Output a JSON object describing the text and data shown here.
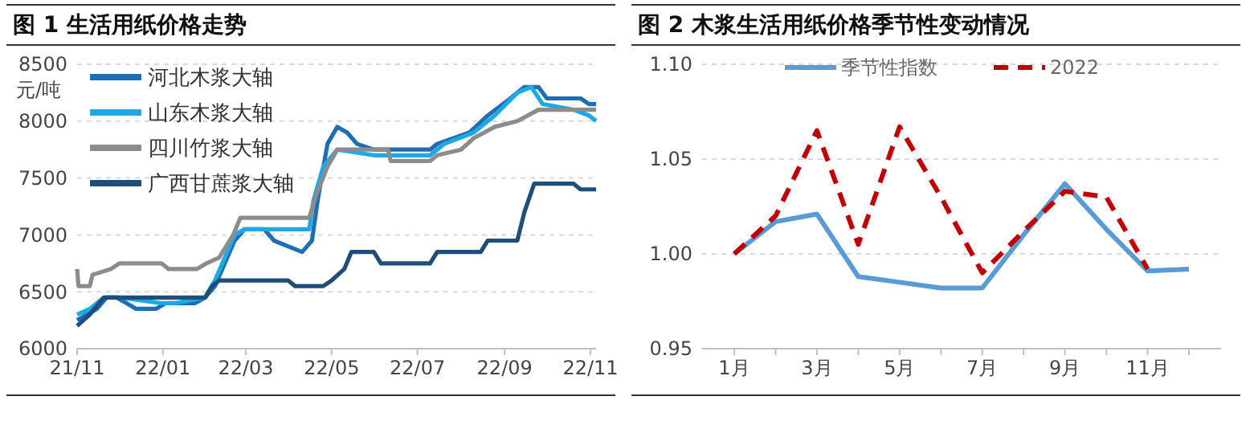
{
  "chart_data": [
    {
      "type": "line",
      "title": "图 1  生活用纸价格走势",
      "ylabel": "元/吨",
      "xlim": [
        "2021-11-01",
        "2022-11-05"
      ],
      "xticks": [
        {
          "value": "2021-11-01",
          "label": "21/11"
        },
        {
          "value": "2022-01-01",
          "label": "22/01"
        },
        {
          "value": "2022-03-01",
          "label": "22/03"
        },
        {
          "value": "2022-05-01",
          "label": "22/05"
        },
        {
          "value": "2022-07-01",
          "label": "22/07"
        },
        {
          "value": "2022-09-01",
          "label": "22/09"
        },
        {
          "value": "2022-11-01",
          "label": "22/11"
        }
      ],
      "ylim": [
        6000,
        8500
      ],
      "yticks": [
        6000,
        6500,
        7000,
        7500,
        8000,
        8500
      ],
      "grid": "y",
      "legend": "top left",
      "series": [
        {
          "name": "河北木浆大轴",
          "color": "#1f6db3",
          "x": [
            "2021-11-01",
            "2021-11-08",
            "2021-11-15",
            "2021-11-22",
            "2021-11-29",
            "2021-12-06",
            "2021-12-13",
            "2021-12-27",
            "2022-01-03",
            "2022-01-24",
            "2022-01-31",
            "2022-02-07",
            "2022-02-14",
            "2022-02-21",
            "2022-02-28",
            "2022-03-14",
            "2022-03-21",
            "2022-03-31",
            "2022-04-10",
            "2022-04-17",
            "2022-04-21",
            "2022-04-28",
            "2022-05-05",
            "2022-05-12",
            "2022-05-19",
            "2022-05-31",
            "2022-07-10",
            "2022-07-15",
            "2022-08-07",
            "2022-08-20",
            "2022-09-05",
            "2022-09-15",
            "2022-09-25",
            "2022-10-01",
            "2022-10-25",
            "2022-10-31",
            "2022-11-05"
          ],
          "values": [
            6250,
            6300,
            6350,
            6450,
            6450,
            6400,
            6350,
            6350,
            6400,
            6400,
            6450,
            6550,
            6750,
            6950,
            7050,
            7050,
            6950,
            6900,
            6850,
            6950,
            7300,
            7800,
            7950,
            7900,
            7800,
            7750,
            7750,
            7800,
            7900,
            8050,
            8200,
            8300,
            8300,
            8200,
            8200,
            8150,
            8150
          ]
        },
        {
          "name": "山东木浆大轴",
          "color": "#1ea8e6",
          "x": [
            "2021-11-01",
            "2021-11-10",
            "2021-11-20",
            "2021-12-01",
            "2021-12-31",
            "2022-01-10",
            "2022-01-31",
            "2022-02-07",
            "2022-02-14",
            "2022-02-21",
            "2022-02-28",
            "2022-04-15",
            "2022-04-18",
            "2022-04-25",
            "2022-05-05",
            "2022-05-31",
            "2022-07-10",
            "2022-07-20",
            "2022-08-10",
            "2022-08-25",
            "2022-09-10",
            "2022-09-20",
            "2022-09-28",
            "2022-10-20",
            "2022-10-31",
            "2022-11-05"
          ],
          "values": [
            6300,
            6350,
            6450,
            6450,
            6400,
            6400,
            6450,
            6600,
            6800,
            7000,
            7050,
            7050,
            7300,
            7600,
            7750,
            7700,
            7700,
            7800,
            7900,
            8050,
            8250,
            8300,
            8150,
            8100,
            8050,
            8000
          ]
        },
        {
          "name": "四川竹浆大轴",
          "color": "#8c8c8c",
          "x": [
            "2021-11-01",
            "2021-11-02",
            "2021-11-10",
            "2021-11-12",
            "2021-11-25",
            "2021-12-01",
            "2021-12-31",
            "2022-01-05",
            "2022-01-25",
            "2022-02-01",
            "2022-02-10",
            "2022-02-20",
            "2022-02-25",
            "2022-04-15",
            "2022-04-20",
            "2022-04-28",
            "2022-05-05",
            "2022-06-10",
            "2022-06-12",
            "2022-07-10",
            "2022-07-15",
            "2022-08-01",
            "2022-08-10",
            "2022-08-25",
            "2022-09-10",
            "2022-09-25",
            "2022-11-05"
          ],
          "values": [
            6700,
            6550,
            6550,
            6650,
            6700,
            6750,
            6750,
            6700,
            6700,
            6750,
            6800,
            7000,
            7150,
            7150,
            7350,
            7600,
            7750,
            7750,
            7650,
            7650,
            7700,
            7750,
            7850,
            7950,
            8000,
            8100,
            8100
          ]
        },
        {
          "name": "广西甘蔗浆大轴",
          "color": "#1f4e79",
          "x": [
            "2021-11-01",
            "2021-11-10",
            "2021-11-20",
            "2021-12-01",
            "2022-01-31",
            "2022-02-05",
            "2022-02-10",
            "2022-03-31",
            "2022-04-05",
            "2022-04-25",
            "2022-05-01",
            "2022-05-10",
            "2022-05-15",
            "2022-05-31",
            "2022-06-05",
            "2022-07-10",
            "2022-07-15",
            "2022-08-15",
            "2022-08-20",
            "2022-09-10",
            "2022-09-15",
            "2022-09-22",
            "2022-10-20",
            "2022-10-25",
            "2022-11-05"
          ],
          "values": [
            6200,
            6300,
            6450,
            6450,
            6450,
            6550,
            6600,
            6600,
            6550,
            6550,
            6600,
            6700,
            6850,
            6850,
            6750,
            6750,
            6850,
            6850,
            6950,
            6950,
            7200,
            7450,
            7450,
            7400,
            7400
          ]
        }
      ]
    },
    {
      "type": "line",
      "title": "图 2  木浆生活用纸价格季节性变动情况",
      "categories": [
        "1月",
        null,
        "3月",
        null,
        "5月",
        null,
        "7月",
        null,
        "9月",
        null,
        "11月",
        null
      ],
      "ylim": [
        0.95,
        1.1
      ],
      "yticks": [
        {
          "value": 0.95,
          "label": "0.95"
        },
        {
          "value": 1,
          "label": "1.00"
        },
        {
          "value": 1.05,
          "label": "1.05"
        },
        {
          "value": 1.1,
          "label": "1.10"
        }
      ],
      "grid": "y",
      "legend": "top",
      "series": [
        {
          "name": "季节性指数",
          "color": "#5b9bd5",
          "line_style": "solid",
          "values": [
            1.0,
            1.017,
            1.021,
            0.988,
            0.985,
            0.982,
            0.982,
            1.01,
            1.037,
            1.013,
            0.991,
            0.992
          ]
        },
        {
          "name": "2022",
          "color": "#c00000",
          "line_style": "dashed",
          "values": [
            1.0,
            1.02,
            1.065,
            1.005,
            1.067,
            1.03,
            0.99,
            1.012,
            1.033,
            1.03,
            0.992,
            null
          ]
        }
      ]
    }
  ]
}
